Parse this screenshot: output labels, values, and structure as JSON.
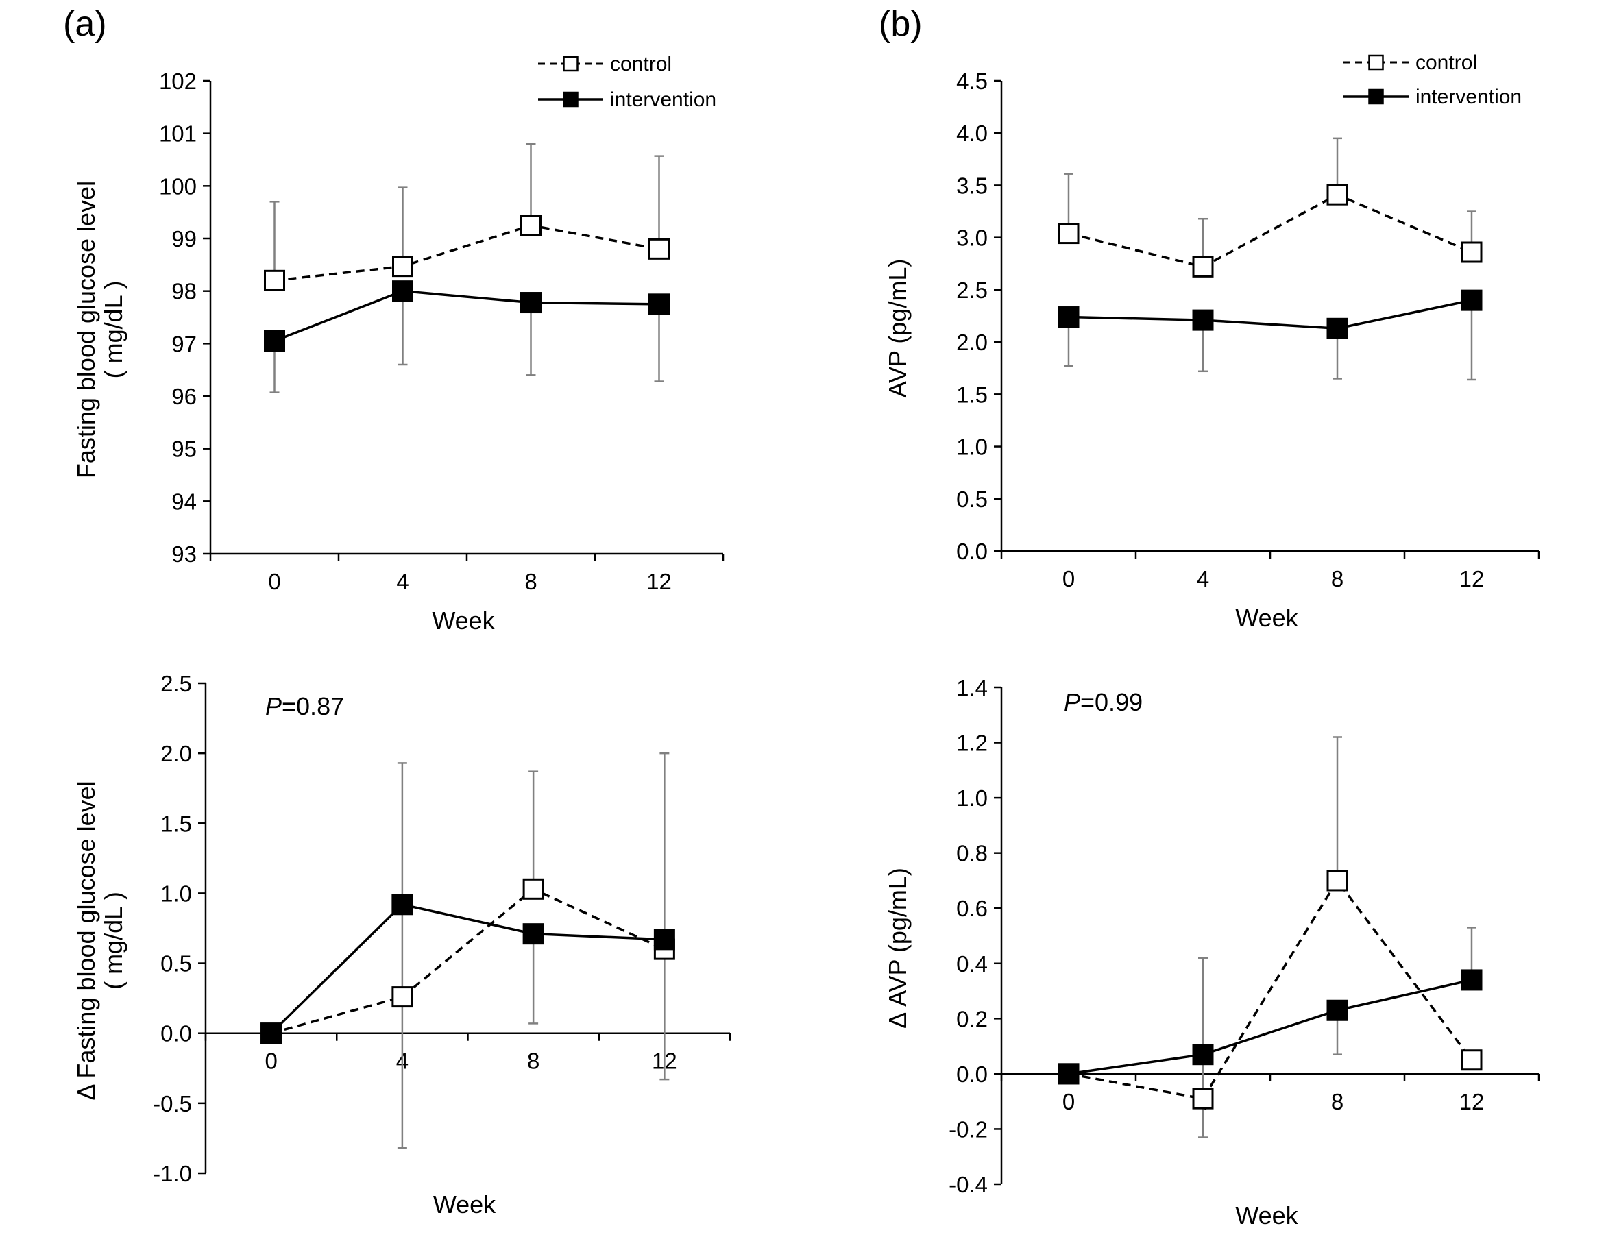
{
  "figure": {
    "panel_a_label": "(a)",
    "panel_b_label": "(b)"
  },
  "legend": {
    "control": "control",
    "intervention": "intervention"
  },
  "colors": {
    "line": "#000000",
    "errorbar": "#808080",
    "control_fill": "#ffffff",
    "intervention_fill": "#000000"
  },
  "chart_data": [
    {
      "id": "a_top",
      "type": "line",
      "xlabel": "Week",
      "ylabel": "Fasting blood glucose level",
      "ylabel2": "( mg/dL  )",
      "categories": [
        "0",
        "4",
        "8",
        "12"
      ],
      "x": [
        0,
        4,
        8,
        12
      ],
      "xlim": [
        -2,
        14
      ],
      "ylim": [
        93,
        102
      ],
      "yticks": [
        93,
        94,
        95,
        96,
        97,
        98,
        99,
        100,
        101,
        102
      ],
      "ytick_decimals": 0,
      "legend": true,
      "pvalue": null,
      "series": [
        {
          "name": "control",
          "values": [
            98.2,
            98.47,
            99.25,
            98.8
          ],
          "err_hi": [
            99.7,
            99.97,
            100.8,
            100.57
          ],
          "err_lo": [
            null,
            null,
            null,
            null
          ]
        },
        {
          "name": "intervention",
          "values": [
            97.05,
            98.0,
            97.78,
            97.75
          ],
          "err_hi": [
            null,
            null,
            null,
            null
          ],
          "err_lo": [
            96.07,
            96.6,
            96.4,
            96.28
          ]
        }
      ]
    },
    {
      "id": "b_top",
      "type": "line",
      "xlabel": "Week",
      "ylabel": "AVP  (pg/mL)",
      "ylabel2": "",
      "categories": [
        "0",
        "4",
        "8",
        "12"
      ],
      "x": [
        0,
        4,
        8,
        12
      ],
      "xlim": [
        -2,
        14
      ],
      "ylim": [
        0,
        4.5
      ],
      "yticks": [
        0,
        0.5,
        1.0,
        1.5,
        2.0,
        2.5,
        3.0,
        3.5,
        4.0,
        4.5
      ],
      "ytick_decimals": 1,
      "legend": true,
      "pvalue": null,
      "series": [
        {
          "name": "control",
          "values": [
            3.04,
            2.72,
            3.41,
            2.86
          ],
          "err_hi": [
            3.61,
            3.18,
            3.95,
            3.25
          ],
          "err_lo": [
            null,
            null,
            null,
            null
          ]
        },
        {
          "name": "intervention",
          "values": [
            2.24,
            2.21,
            2.13,
            2.4
          ],
          "err_hi": [
            null,
            null,
            null,
            null
          ],
          "err_lo": [
            1.77,
            1.72,
            1.65,
            1.64
          ]
        }
      ]
    },
    {
      "id": "a_bottom",
      "type": "line",
      "xlabel": "Week",
      "ylabel": "Δ Fasting blood glucose level",
      "ylabel2": "( mg/dL  )",
      "categories": [
        "0",
        "4",
        "8",
        "12"
      ],
      "x": [
        0,
        4,
        8,
        12
      ],
      "xlim": [
        -2,
        14
      ],
      "ylim": [
        -1.0,
        2.5
      ],
      "yticks": [
        -1.0,
        -0.5,
        0.0,
        0.5,
        1.0,
        1.5,
        2.0,
        2.5
      ],
      "ytick_decimals": 1,
      "legend": false,
      "pvalue": {
        "italic": "P",
        "rest": "=0.87"
      },
      "series": [
        {
          "name": "control",
          "values": [
            0.0,
            0.26,
            1.03,
            0.6
          ],
          "err_hi": [
            null,
            null,
            1.87,
            null
          ],
          "err_lo": [
            null,
            null,
            null,
            -0.33
          ]
        },
        {
          "name": "intervention",
          "values": [
            0.0,
            0.92,
            0.71,
            0.67
          ],
          "err_hi": [
            null,
            1.93,
            null,
            2.0
          ],
          "err_lo": [
            null,
            -0.82,
            0.07,
            null
          ]
        }
      ]
    },
    {
      "id": "b_bottom",
      "type": "line",
      "xlabel": "Week",
      "ylabel": "Δ AVP  (pg/mL)",
      "ylabel2": "",
      "categories": [
        "0",
        "4",
        "8",
        "12"
      ],
      "x": [
        0,
        4,
        8,
        12
      ],
      "xlim": [
        -2,
        14
      ],
      "ylim": [
        -0.4,
        1.4
      ],
      "yticks": [
        -0.4,
        -0.2,
        0.0,
        0.2,
        0.4,
        0.6,
        0.8,
        1.0,
        1.2,
        1.4
      ],
      "ytick_decimals": 1,
      "legend": false,
      "pvalue": {
        "italic": "P",
        "rest": "=0.99"
      },
      "series": [
        {
          "name": "control",
          "values": [
            0.0,
            -0.09,
            0.7,
            0.05
          ],
          "err_hi": [
            null,
            0.42,
            1.22,
            null
          ],
          "err_lo": [
            null,
            -0.23,
            null,
            null
          ]
        },
        {
          "name": "intervention",
          "values": [
            0.0,
            0.07,
            0.23,
            0.34
          ],
          "err_hi": [
            null,
            null,
            null,
            0.53
          ],
          "err_lo": [
            null,
            null,
            0.07,
            null
          ]
        }
      ]
    }
  ]
}
